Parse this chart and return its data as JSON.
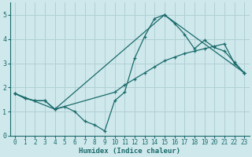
{
  "xlabel": "Humidex (Indice chaleur)",
  "ylabel": "",
  "xlim": [
    -0.5,
    23.5
  ],
  "ylim": [
    0,
    5.5
  ],
  "xticks": [
    0,
    1,
    2,
    3,
    4,
    5,
    6,
    7,
    8,
    9,
    10,
    11,
    12,
    13,
    14,
    15,
    16,
    17,
    18,
    19,
    20,
    21,
    22,
    23
  ],
  "yticks": [
    0,
    1,
    2,
    3,
    4,
    5
  ],
  "bg_color": "#cfe8ec",
  "line_color": "#1a6b6b",
  "grid_color": "#b0d0d4",
  "series": [
    {
      "x": [
        0,
        1,
        2,
        3,
        4,
        5,
        6,
        7,
        8,
        9,
        10,
        11,
        12,
        13,
        14,
        15,
        16,
        17,
        18,
        19,
        20,
        21,
        22,
        23
      ],
      "y": [
        1.75,
        1.55,
        1.45,
        1.45,
        1.1,
        1.2,
        1.0,
        0.6,
        0.45,
        0.2,
        1.45,
        1.8,
        3.2,
        4.1,
        4.85,
        5.0,
        4.65,
        4.2,
        3.6,
        3.95,
        3.65,
        3.5,
        3.05,
        2.6
      ]
    },
    {
      "x": [
        0,
        1,
        2,
        3,
        4,
        10,
        11,
        12,
        13,
        14,
        15,
        16,
        17,
        18,
        19,
        20,
        21,
        22,
        23
      ],
      "y": [
        1.75,
        1.55,
        1.45,
        1.45,
        1.1,
        1.8,
        2.1,
        2.35,
        2.6,
        2.85,
        3.1,
        3.25,
        3.4,
        3.5,
        3.6,
        3.7,
        3.8,
        3.0,
        2.6
      ]
    },
    {
      "x": [
        0,
        4,
        15,
        23
      ],
      "y": [
        1.75,
        1.1,
        5.0,
        2.6
      ]
    }
  ]
}
